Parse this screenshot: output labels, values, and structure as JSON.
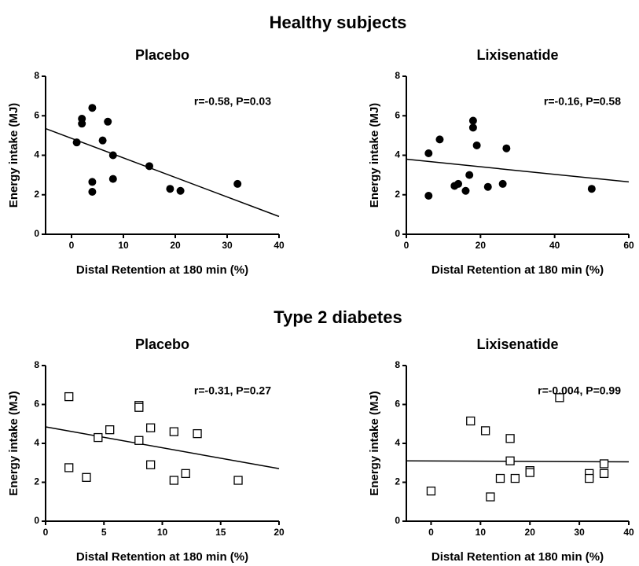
{
  "headings": [
    "Healthy subjects",
    "Type 2 diabetes"
  ],
  "chart_data": [
    {
      "type": "scatter",
      "title": "Placebo",
      "annotation": "r=-0.58, P=0.03",
      "x_label": "Distal Retention at 180 min (%)",
      "y_label": "Energy intake (MJ)",
      "marker": "filled-circle",
      "color": "#000000",
      "x": [
        1,
        2,
        2,
        4,
        4,
        4,
        6,
        7,
        8,
        8,
        15,
        19,
        21,
        32
      ],
      "values": [
        4.65,
        5.85,
        5.6,
        6.4,
        2.65,
        2.15,
        4.75,
        5.7,
        4.0,
        2.8,
        3.45,
        2.3,
        2.2,
        2.55
      ],
      "fit_line": {
        "x": [
          -5,
          40
        ],
        "y": [
          5.35,
          0.9
        ]
      },
      "xlim": [
        -5,
        40
      ],
      "xticks": [
        0,
        10,
        20,
        30,
        40
      ],
      "ylim": [
        0,
        8
      ],
      "yticks": [
        0,
        2,
        4,
        6,
        8
      ]
    },
    {
      "type": "scatter",
      "title": "Lixisenatide",
      "annotation": "r=-0.16, P=0.58",
      "x_label": "Distal Retention at 180 min (%)",
      "y_label": "Energy intake (MJ)",
      "marker": "filled-circle",
      "color": "#000000",
      "x": [
        6,
        6,
        9,
        13,
        14,
        16,
        17,
        18,
        18,
        19,
        22,
        26,
        27,
        50
      ],
      "values": [
        4.1,
        1.95,
        4.8,
        2.45,
        2.55,
        2.2,
        3.0,
        5.75,
        5.4,
        4.5,
        2.4,
        2.55,
        4.35,
        2.3
      ],
      "fit_line": {
        "x": [
          0,
          60
        ],
        "y": [
          3.8,
          2.65
        ]
      },
      "xlim": [
        0,
        60
      ],
      "xticks": [
        0,
        20,
        40,
        60
      ],
      "ylim": [
        0,
        8
      ],
      "yticks": [
        0,
        2,
        4,
        6,
        8
      ]
    },
    {
      "type": "scatter",
      "title": "Placebo",
      "annotation": "r=-0.31, P=0.27",
      "x_label": "Distal Retention at 180 min (%)",
      "y_label": "Energy intake (MJ)",
      "marker": "open-square",
      "color": "#000000",
      "x": [
        2,
        2,
        3.5,
        4.5,
        5.5,
        8,
        8,
        8,
        9,
        9,
        11,
        11,
        12,
        13,
        16.5
      ],
      "values": [
        6.4,
        2.75,
        2.25,
        4.3,
        4.7,
        5.95,
        5.85,
        4.15,
        4.8,
        2.9,
        4.6,
        2.1,
        2.45,
        4.5,
        2.1
      ],
      "fit_line": {
        "x": [
          0,
          20
        ],
        "y": [
          4.85,
          2.7
        ]
      },
      "xlim": [
        0,
        20
      ],
      "xticks": [
        0,
        5,
        10,
        15,
        20
      ],
      "ylim": [
        0,
        8
      ],
      "yticks": [
        0,
        2,
        4,
        6,
        8
      ]
    },
    {
      "type": "scatter",
      "title": "Lixisenatide",
      "annotation": "r=-0.004, P=0.99",
      "x_label": "Distal Retention at 180 min (%)",
      "y_label": "Energy intake (MJ)",
      "marker": "open-square",
      "color": "#000000",
      "x": [
        0,
        8,
        11,
        12,
        14,
        16,
        16,
        17,
        20,
        20,
        26,
        32,
        32,
        35,
        35
      ],
      "values": [
        1.55,
        5.15,
        4.65,
        1.25,
        2.2,
        4.25,
        3.1,
        2.2,
        2.6,
        2.5,
        6.35,
        2.45,
        2.2,
        2.95,
        2.45
      ],
      "fit_line": {
        "x": [
          -5,
          40
        ],
        "y": [
          3.1,
          3.05
        ]
      },
      "xlim": [
        -5,
        40
      ],
      "xticks": [
        0,
        10,
        20,
        30,
        40
      ],
      "ylim": [
        0,
        8
      ],
      "yticks": [
        0,
        2,
        4,
        6,
        8
      ]
    }
  ]
}
